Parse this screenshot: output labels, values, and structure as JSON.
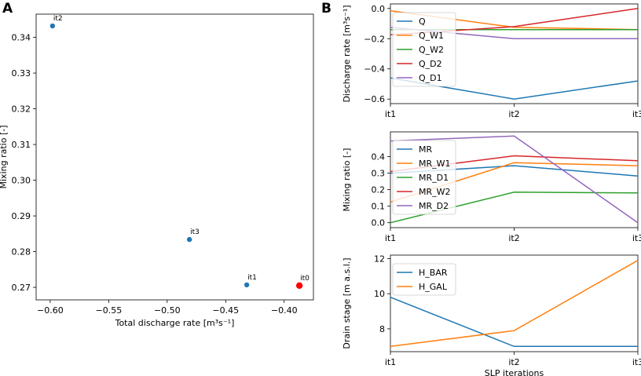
{
  "figure": {
    "panel_labels": [
      "A",
      "B"
    ],
    "colors": {
      "blue": "#1f77b4",
      "orange": "#ff7f0e",
      "green": "#2ca02c",
      "red": "#d62728",
      "purple": "#9467bd",
      "red_point": "#ff0000"
    }
  },
  "chart_data": [
    {
      "id": "scatter",
      "type": "scatter",
      "xlabel": "Total discharge rate [m³s⁻¹]",
      "ylabel": "Mixing ratio [-]",
      "xlim": [
        -0.612,
        -0.375
      ],
      "ylim": [
        0.2665,
        0.3465
      ],
      "xticks": [
        -0.6,
        -0.55,
        -0.5,
        -0.45,
        -0.4
      ],
      "xtick_labels": [
        "−0.60",
        "−0.55",
        "−0.50",
        "−0.45",
        "−0.40"
      ],
      "yticks": [
        0.27,
        0.28,
        0.29,
        0.3,
        0.31,
        0.32,
        0.33,
        0.34
      ],
      "ytick_labels": [
        "0.27",
        "0.28",
        "0.29",
        "0.30",
        "0.31",
        "0.32",
        "0.33",
        "0.34"
      ],
      "points": [
        {
          "label": "it0",
          "x": -0.387,
          "y": 0.2705,
          "color": "red"
        },
        {
          "label": "it1",
          "x": -0.432,
          "y": 0.2707,
          "color": "blue"
        },
        {
          "label": "it2",
          "x": -0.598,
          "y": 0.3432,
          "color": "blue"
        },
        {
          "label": "it3",
          "x": -0.481,
          "y": 0.2834,
          "color": "blue"
        }
      ]
    },
    {
      "id": "discharge",
      "type": "line",
      "categories": [
        "it1",
        "it2",
        "it3"
      ],
      "ylabel": "Discharge rate [m³s⁻¹]",
      "ylim": [
        -0.63,
        0.03
      ],
      "yticks": [
        0.0,
        -0.2,
        -0.4,
        -0.6
      ],
      "ytick_labels": [
        "0.0",
        "−0.2",
        "−0.4",
        "−0.6"
      ],
      "series": [
        {
          "name": "Q",
          "color": "blue",
          "values": [
            -0.46,
            -0.6,
            -0.48
          ]
        },
        {
          "name": "Q_W1",
          "color": "orange",
          "values": [
            -0.015,
            -0.125,
            -0.14
          ]
        },
        {
          "name": "Q_W2",
          "color": "green",
          "values": [
            -0.14,
            -0.14,
            -0.14
          ]
        },
        {
          "name": "Q_D2",
          "color": "red",
          "values": [
            -0.175,
            -0.12,
            0.0
          ]
        },
        {
          "name": "Q_D1",
          "color": "purple",
          "values": [
            -0.125,
            -0.2,
            -0.2
          ]
        }
      ]
    },
    {
      "id": "mixing",
      "type": "line",
      "categories": [
        "it1",
        "it2",
        "it3"
      ],
      "ylabel": "Mixing ratio [-]",
      "ylim": [
        -0.03,
        0.55
      ],
      "yticks": [
        0.0,
        0.1,
        0.2,
        0.3,
        0.4
      ],
      "ytick_labels": [
        "0.0",
        "0.1",
        "0.2",
        "0.3",
        "0.4"
      ],
      "series": [
        {
          "name": "MR",
          "color": "blue",
          "values": [
            0.3,
            0.345,
            0.283
          ]
        },
        {
          "name": "MR_W1",
          "color": "orange",
          "values": [
            0.125,
            0.363,
            0.345
          ]
        },
        {
          "name": "MR_D1",
          "color": "green",
          "values": [
            0.0,
            0.185,
            0.18
          ]
        },
        {
          "name": "MR_W2",
          "color": "red",
          "values": [
            0.31,
            0.405,
            0.375
          ]
        },
        {
          "name": "MR_D2",
          "color": "purple",
          "values": [
            0.495,
            0.525,
            0.0
          ]
        }
      ]
    },
    {
      "id": "stage",
      "type": "line",
      "categories": [
        "it1",
        "it2",
        "it3"
      ],
      "xlabel": "SLP iterations",
      "ylabel": "Drain stage [m a.s.l.]",
      "ylim": [
        6.7,
        12.2
      ],
      "yticks": [
        8,
        10,
        12
      ],
      "ytick_labels": [
        "8",
        "10",
        "12"
      ],
      "series": [
        {
          "name": "H_BAR",
          "color": "blue",
          "values": [
            9.8,
            7.0,
            7.0
          ]
        },
        {
          "name": "H_GAL",
          "color": "orange",
          "values": [
            7.0,
            7.9,
            11.9
          ]
        }
      ]
    }
  ]
}
